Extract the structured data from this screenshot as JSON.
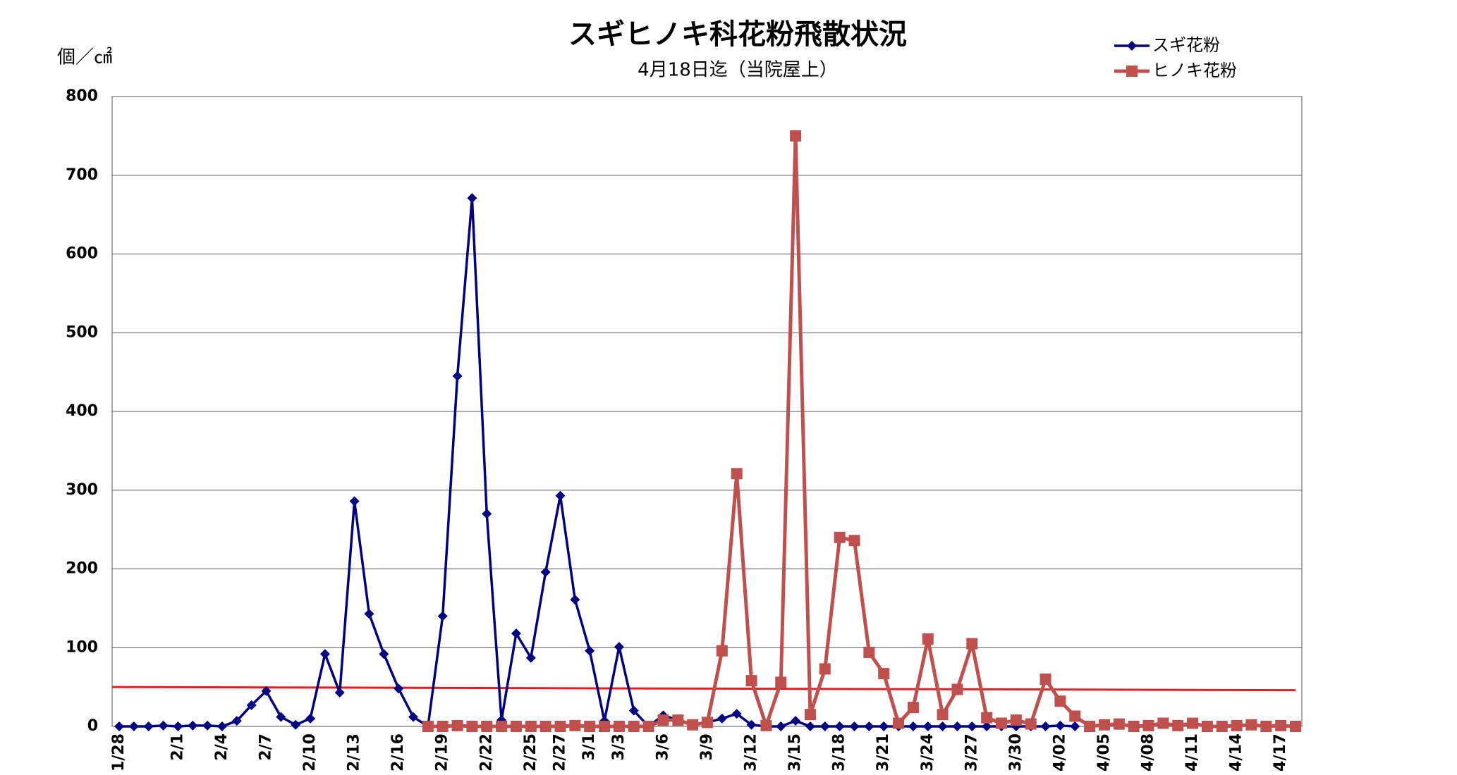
{
  "chart_data": {
    "type": "line",
    "title": "スギヒノキ科花粉飛散状況",
    "subtitle": "4月18日迄（当院屋上）",
    "y_label": "個／㎠",
    "categories": [
      "1/28",
      null,
      null,
      null,
      "2/1",
      null,
      null,
      "2/4",
      null,
      null,
      "2/7",
      null,
      null,
      "2/10",
      null,
      null,
      "2/13",
      null,
      null,
      "2/16",
      null,
      null,
      "2/19",
      null,
      null,
      "2/22",
      null,
      null,
      "2/25",
      null,
      "2/27",
      null,
      "3/1",
      null,
      "3/3",
      null,
      null,
      "3/6",
      null,
      null,
      "3/9",
      null,
      null,
      "3/12",
      null,
      null,
      "3/15",
      null,
      null,
      "3/18",
      null,
      null,
      "3/21",
      null,
      null,
      "3/24",
      null,
      null,
      "3/27",
      null,
      null,
      "3/30",
      null,
      null,
      "4/02",
      null,
      null,
      "4/05",
      null,
      null,
      "4/08",
      null,
      null,
      "4/11",
      null,
      null,
      "4/14",
      null,
      null,
      "4/17",
      null
    ],
    "series": [
      {
        "name": "スギ花粉",
        "color": "#000080",
        "marker": "diamond",
        "values": [
          0,
          0,
          0,
          1,
          0,
          1,
          1,
          0,
          7,
          27,
          45,
          12,
          2,
          10,
          92,
          43,
          286,
          143,
          92,
          48,
          12,
          0,
          140,
          445,
          671,
          270,
          8,
          118,
          87,
          196,
          293,
          161,
          96,
          7,
          101,
          20,
          0,
          14,
          8,
          2,
          5,
          10,
          16,
          2,
          0,
          0,
          7,
          0,
          0,
          0,
          0,
          0,
          0,
          0,
          0,
          0,
          0,
          0,
          0,
          0,
          0,
          0,
          0,
          0,
          1,
          0,
          null,
          null,
          null,
          null,
          null,
          null,
          null,
          null,
          null,
          null,
          null,
          null,
          null,
          null,
          null
        ]
      },
      {
        "name": "ヒノキ花粉",
        "color": "#c0504d",
        "marker": "square",
        "values": [
          null,
          null,
          null,
          null,
          null,
          null,
          null,
          null,
          null,
          null,
          null,
          null,
          null,
          null,
          null,
          null,
          null,
          null,
          null,
          null,
          null,
          0,
          0,
          1,
          0,
          0,
          0,
          0,
          0,
          0,
          0,
          1,
          0,
          0,
          0,
          0,
          0,
          8,
          8,
          2,
          5,
          96,
          321,
          58,
          1,
          56,
          750,
          15,
          73,
          240,
          236,
          94,
          67,
          4,
          24,
          111,
          15,
          47,
          105,
          11,
          4,
          8,
          3,
          60,
          32,
          13,
          0,
          2,
          3,
          0,
          1,
          4,
          1,
          4,
          0,
          0,
          1,
          2,
          0,
          1,
          0
        ]
      }
    ],
    "reference_line": {
      "values": [
        50,
        46
      ],
      "color": "#e02020"
    },
    "ylim": [
      0,
      800
    ],
    "yticks": [
      0,
      100,
      200,
      300,
      400,
      500,
      600,
      700,
      800
    ],
    "grid": true,
    "legend": "top-right"
  }
}
